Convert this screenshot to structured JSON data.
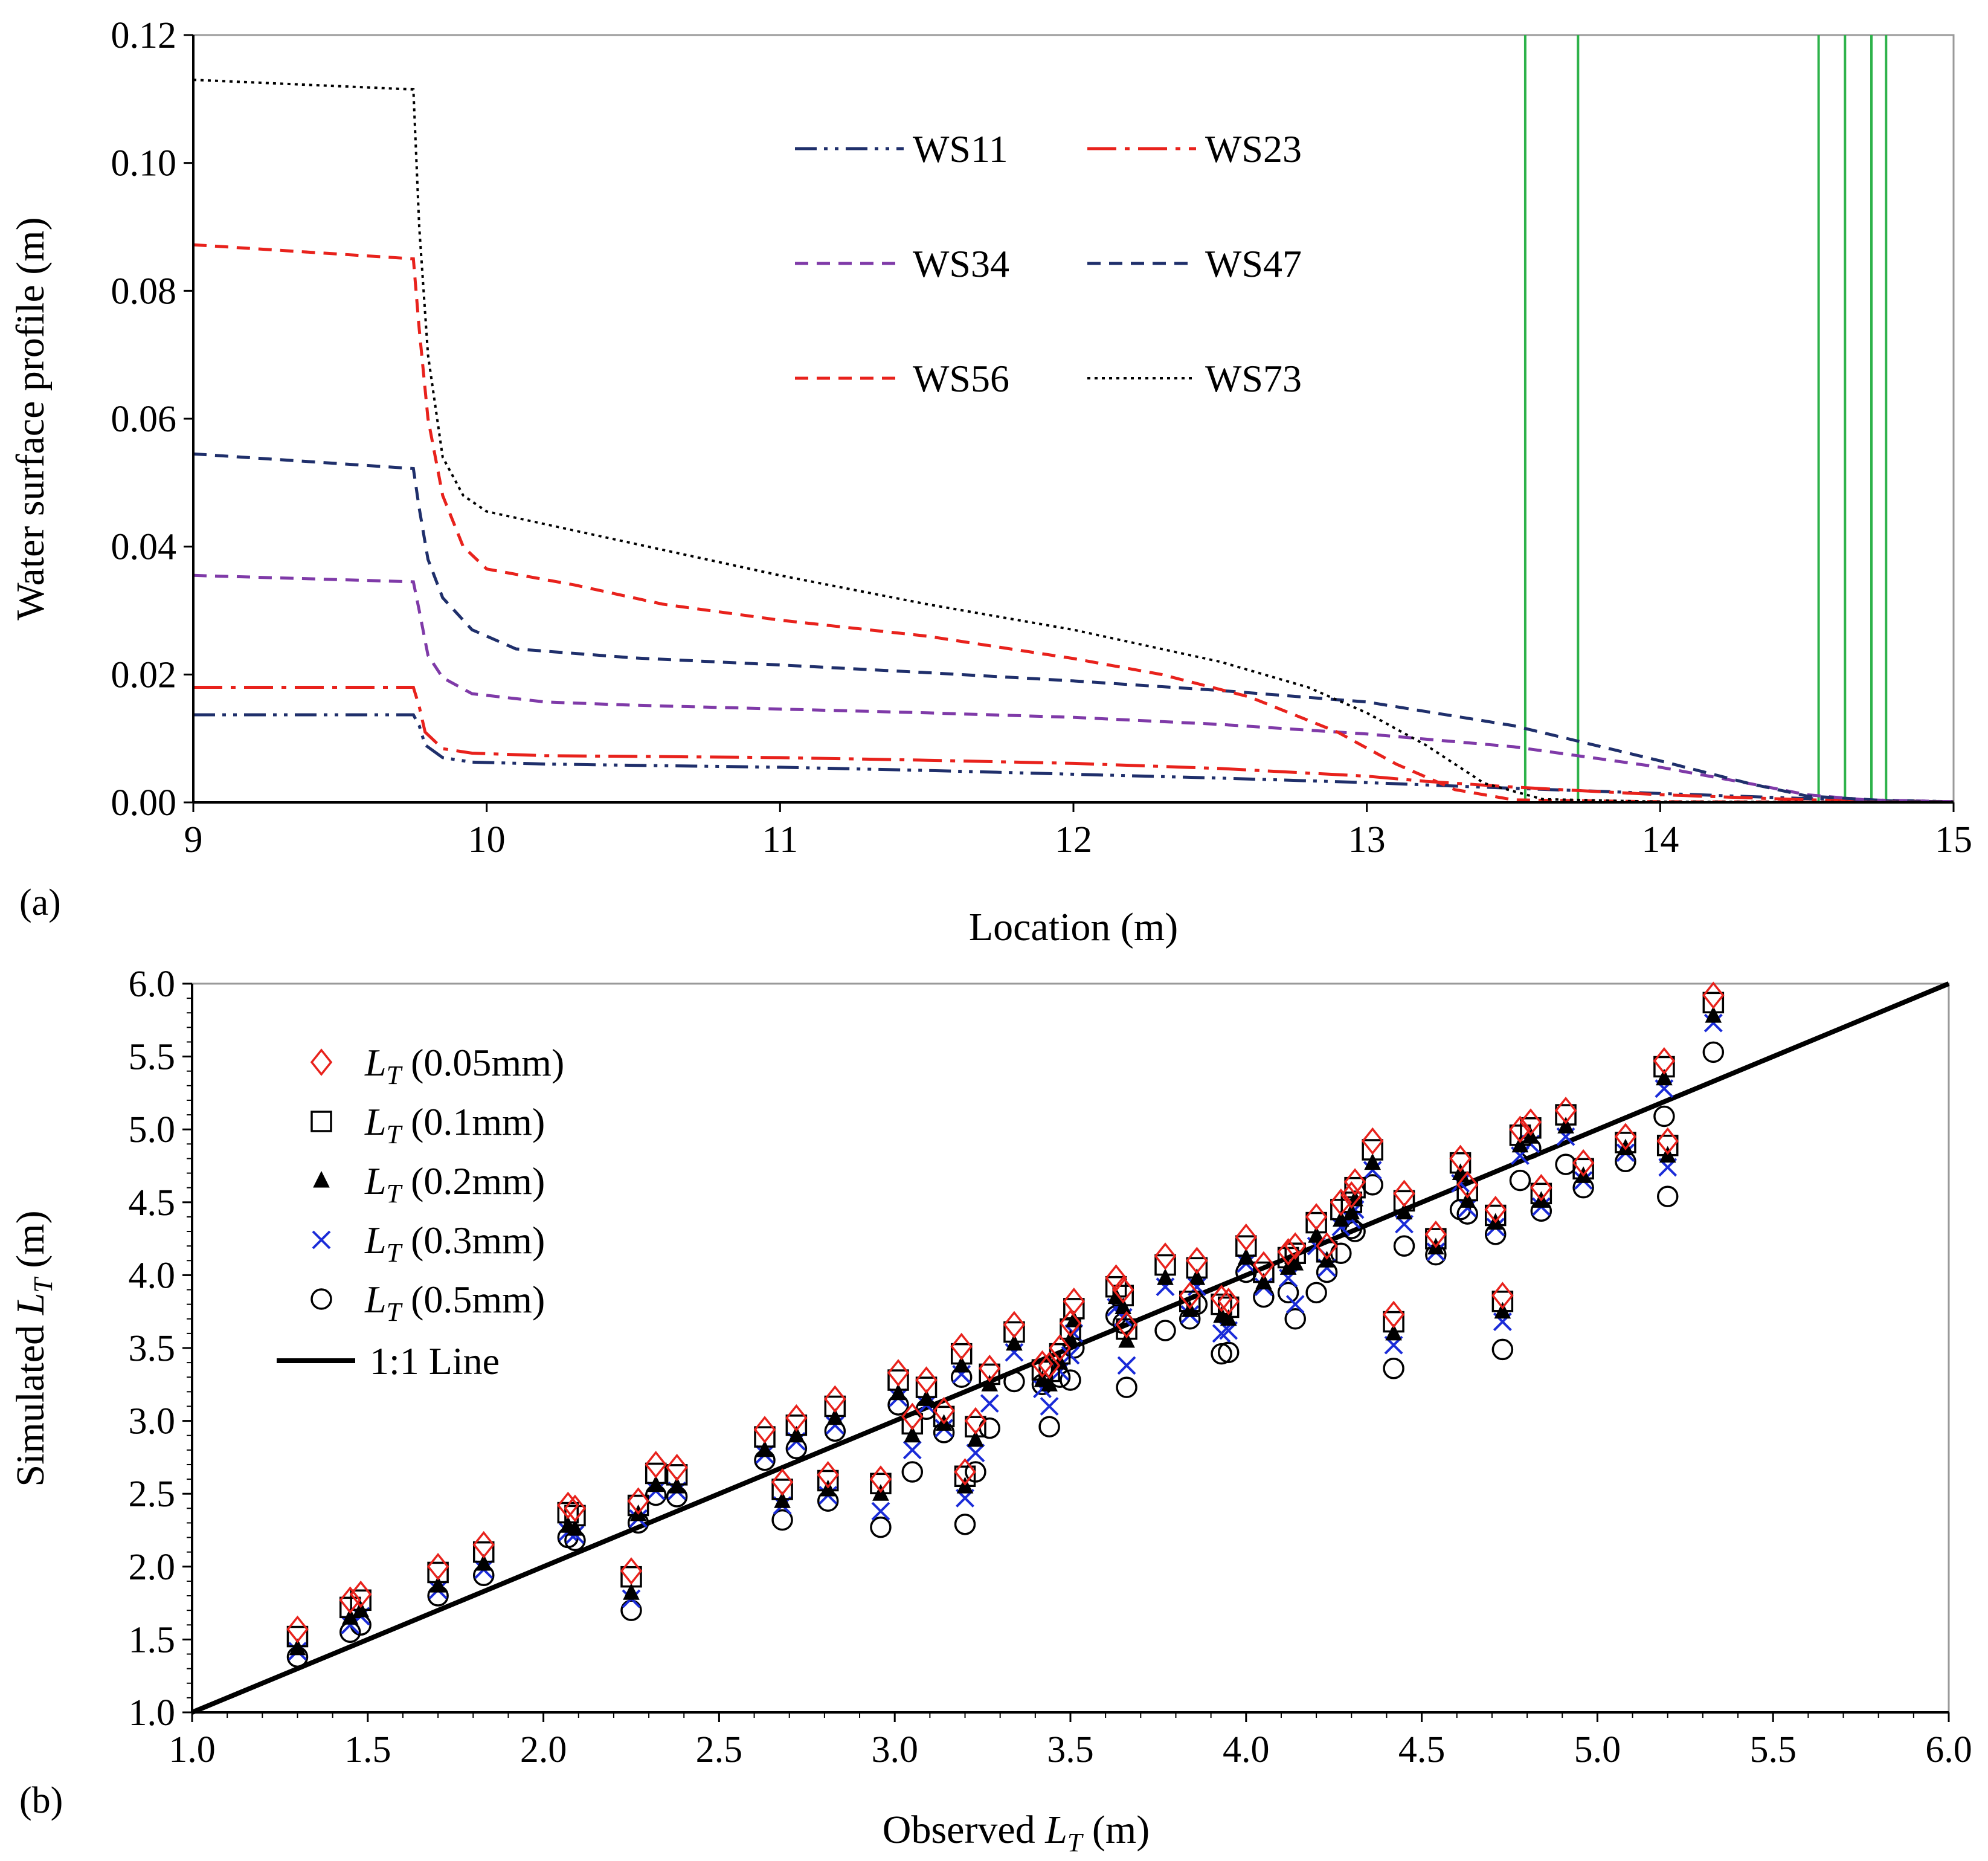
{
  "chart_data": [
    {
      "type": "line",
      "panel_label": "(a)",
      "xlabel": "Location (m)",
      "ylabel": "Water surface profile (m)",
      "xlim": [
        9,
        15
      ],
      "ylim": [
        0,
        0.12
      ],
      "xticks": [
        9,
        10,
        11,
        12,
        13,
        14,
        15
      ],
      "yticks": [
        "0.00",
        "0.02",
        "0.04",
        "0.06",
        "0.08",
        "0.10",
        "0.12"
      ],
      "grid": false,
      "legend_position": "top-center",
      "vertical_lines": {
        "color": "#2db24a",
        "x": [
          13.54,
          13.72,
          14.54,
          14.63,
          14.72,
          14.77
        ]
      },
      "series": [
        {
          "name": "WS11",
          "color": "#1f2f6b",
          "dash": "dashdotdot",
          "points": [
            [
              9.0,
              0.0137
            ],
            [
              9.75,
              0.0137
            ],
            [
              9.77,
              0.012
            ],
            [
              9.79,
              0.009
            ],
            [
              9.85,
              0.007
            ],
            [
              9.95,
              0.0063
            ],
            [
              10.2,
              0.006
            ],
            [
              10.5,
              0.0058
            ],
            [
              11.0,
              0.0055
            ],
            [
              11.5,
              0.005
            ],
            [
              12.0,
              0.0044
            ],
            [
              12.5,
              0.0038
            ],
            [
              13.0,
              0.0031
            ],
            [
              13.5,
              0.0022
            ],
            [
              14.0,
              0.0014
            ],
            [
              14.5,
              0.0006
            ],
            [
              15.0,
              0.0001
            ]
          ]
        },
        {
          "name": "WS23",
          "color": "#e8221c",
          "dash": "longdashdot",
          "points": [
            [
              9.0,
              0.018
            ],
            [
              9.75,
              0.018
            ],
            [
              9.77,
              0.015
            ],
            [
              9.79,
              0.011
            ],
            [
              9.85,
              0.0084
            ],
            [
              9.95,
              0.0077
            ],
            [
              10.2,
              0.0073
            ],
            [
              10.5,
              0.0072
            ],
            [
              11.0,
              0.007
            ],
            [
              11.5,
              0.0066
            ],
            [
              12.0,
              0.0061
            ],
            [
              12.5,
              0.0053
            ],
            [
              13.0,
              0.0041
            ],
            [
              13.2,
              0.0033
            ],
            [
              13.5,
              0.0024
            ],
            [
              13.7,
              0.0019
            ],
            [
              14.0,
              0.0012
            ],
            [
              14.5,
              0.0004
            ],
            [
              15.0,
              0.0001
            ]
          ]
        },
        {
          "name": "WS34",
          "color": "#7f3aa8",
          "dash": "dash",
          "points": [
            [
              9.0,
              0.0355
            ],
            [
              9.75,
              0.0345
            ],
            [
              9.77,
              0.03
            ],
            [
              9.8,
              0.023
            ],
            [
              9.85,
              0.0195
            ],
            [
              9.95,
              0.017
            ],
            [
              10.2,
              0.0157
            ],
            [
              10.5,
              0.0152
            ],
            [
              11.0,
              0.0146
            ],
            [
              11.5,
              0.014
            ],
            [
              12.0,
              0.0133
            ],
            [
              12.5,
              0.0122
            ],
            [
              13.0,
              0.0107
            ],
            [
              13.5,
              0.0087
            ],
            [
              14.0,
              0.0055
            ],
            [
              14.3,
              0.003
            ],
            [
              14.5,
              0.0012
            ],
            [
              14.7,
              0.0004
            ],
            [
              15.0,
              0.0001
            ]
          ]
        },
        {
          "name": "WS47",
          "color": "#1f2f6b",
          "dash": "dash",
          "points": [
            [
              9.0,
              0.0545
            ],
            [
              9.75,
              0.0522
            ],
            [
              9.77,
              0.046
            ],
            [
              9.8,
              0.038
            ],
            [
              9.85,
              0.032
            ],
            [
              9.95,
              0.027
            ],
            [
              10.1,
              0.024
            ],
            [
              10.5,
              0.0226
            ],
            [
              11.0,
              0.0215
            ],
            [
              11.5,
              0.0203
            ],
            [
              12.0,
              0.019
            ],
            [
              12.5,
              0.0175
            ],
            [
              13.0,
              0.0157
            ],
            [
              13.5,
              0.012
            ],
            [
              14.0,
              0.0065
            ],
            [
              14.3,
              0.003
            ],
            [
              14.5,
              0.001
            ],
            [
              14.8,
              0.0002
            ],
            [
              15.0,
              0.0001
            ]
          ]
        },
        {
          "name": "WS56",
          "color": "#e8221c",
          "dash": "dash",
          "points": [
            [
              9.0,
              0.0872
            ],
            [
              9.75,
              0.085
            ],
            [
              9.77,
              0.074
            ],
            [
              9.8,
              0.06
            ],
            [
              9.85,
              0.048
            ],
            [
              9.92,
              0.04
            ],
            [
              10.0,
              0.0365
            ],
            [
              10.3,
              0.034
            ],
            [
              10.6,
              0.031
            ],
            [
              11.0,
              0.0285
            ],
            [
              11.5,
              0.026
            ],
            [
              12.0,
              0.0225
            ],
            [
              12.3,
              0.02
            ],
            [
              12.6,
              0.0165
            ],
            [
              12.9,
              0.011
            ],
            [
              13.1,
              0.006
            ],
            [
              13.3,
              0.002
            ],
            [
              13.5,
              0.0004
            ],
            [
              14.0,
              0.0001
            ],
            [
              15.0,
              0.0
            ]
          ]
        },
        {
          "name": "WS73",
          "color": "#000000",
          "dash": "dot",
          "points": [
            [
              9.0,
              0.113
            ],
            [
              9.75,
              0.1115
            ],
            [
              9.77,
              0.09
            ],
            [
              9.8,
              0.07
            ],
            [
              9.85,
              0.054
            ],
            [
              9.92,
              0.048
            ],
            [
              10.0,
              0.0455
            ],
            [
              10.2,
              0.0435
            ],
            [
              10.5,
              0.0405
            ],
            [
              11.0,
              0.0355
            ],
            [
              11.5,
              0.031
            ],
            [
              12.0,
              0.027
            ],
            [
              12.5,
              0.022
            ],
            [
              12.8,
              0.018
            ],
            [
              13.0,
              0.014
            ],
            [
              13.2,
              0.009
            ],
            [
              13.4,
              0.003
            ],
            [
              13.6,
              0.0005
            ],
            [
              14.0,
              0.0001
            ],
            [
              15.0,
              0.0
            ]
          ]
        }
      ]
    },
    {
      "type": "scatter",
      "panel_label": "(b)",
      "xlabel_prefix": "Observed ",
      "xlabel_var": "L",
      "xlabel_sub": "T",
      "xlabel_unit": " (m)",
      "ylabel_prefix": "Simulated ",
      "ylabel_var": "L",
      "ylabel_sub": "T",
      "ylabel_unit": " (m)",
      "xlim": [
        1.0,
        6.0
      ],
      "ylim": [
        1.0,
        6.0
      ],
      "xticks": [
        "1.0",
        "1.5",
        "2.0",
        "2.5",
        "3.0",
        "3.5",
        "4.0",
        "4.5",
        "5.0",
        "5.5",
        "6.0"
      ],
      "yticks": [
        "1.0",
        "1.5",
        "2.0",
        "2.5",
        "3.0",
        "3.5",
        "4.0",
        "4.5",
        "5.0",
        "5.5",
        "6.0"
      ],
      "grid": false,
      "legend_position": "top-left",
      "reference_line": {
        "name": "1:1 Line",
        "color": "#000000",
        "points": [
          [
            1.0,
            1.0
          ],
          [
            6.0,
            6.0
          ]
        ]
      },
      "observed_x": [
        1.3,
        1.45,
        1.48,
        1.7,
        1.83,
        2.07,
        2.09,
        2.25,
        2.27,
        2.32,
        2.38,
        2.63,
        2.68,
        2.72,
        2.81,
        2.83,
        2.96,
        3.01,
        3.05,
        3.09,
        3.14,
        3.19,
        3.2,
        3.23,
        3.27,
        3.34,
        3.42,
        3.44,
        3.47,
        3.5,
        3.51,
        3.63,
        3.65,
        3.66,
        3.77,
        3.84,
        3.86,
        3.93,
        3.95,
        4.0,
        4.05,
        4.12,
        4.14,
        4.2,
        4.23,
        4.27,
        4.3,
        4.31,
        4.36,
        4.42,
        4.45,
        4.54,
        4.61,
        4.63,
        4.71,
        4.73,
        4.78,
        4.81,
        4.84,
        4.91,
        4.96,
        5.08,
        5.19,
        5.2,
        5.33
      ],
      "series": [
        {
          "name": "(0.05mm)",
          "color": "#e8221c",
          "marker": "diamond",
          "y": [
            1.57,
            1.77,
            1.81,
            2.0,
            2.15,
            2.42,
            2.4,
            1.97,
            2.45,
            2.7,
            2.68,
            2.94,
            2.58,
            3.02,
            2.63,
            3.15,
            2.6,
            3.33,
            3.03,
            3.28,
            3.07,
            3.51,
            2.65,
            3.0,
            3.36,
            3.66,
            3.39,
            3.38,
            3.5,
            3.67,
            3.82,
            3.98,
            3.9,
            3.66,
            4.13,
            3.86,
            4.1,
            3.84,
            3.82,
            4.26,
            4.07,
            4.16,
            4.2,
            4.4,
            4.2,
            4.5,
            4.55,
            4.64,
            4.92,
            3.73,
            4.56,
            4.28,
            4.8,
            4.62,
            4.45,
            3.86,
            5.0,
            5.05,
            4.6,
            5.13,
            4.77,
            4.95,
            5.47,
            4.92,
            5.92
          ]
        },
        {
          "name": "(0.1mm)",
          "color": "#000000",
          "marker": "square",
          "y": [
            1.52,
            1.72,
            1.77,
            1.96,
            2.1,
            2.37,
            2.35,
            1.93,
            2.42,
            2.64,
            2.63,
            2.89,
            2.53,
            2.97,
            2.59,
            3.1,
            2.57,
            3.28,
            2.98,
            3.23,
            3.03,
            3.46,
            2.62,
            2.96,
            3.32,
            3.61,
            3.35,
            3.34,
            3.46,
            3.63,
            3.77,
            3.92,
            3.86,
            3.63,
            4.07,
            3.82,
            4.05,
            3.8,
            3.78,
            4.2,
            4.02,
            4.12,
            4.15,
            4.36,
            4.16,
            4.45,
            4.5,
            4.6,
            4.86,
            3.68,
            4.51,
            4.25,
            4.77,
            4.58,
            4.41,
            3.82,
            4.96,
            5.01,
            4.56,
            5.1,
            4.73,
            4.91,
            5.43,
            4.89,
            5.87
          ]
        },
        {
          "name": "(0.2mm)",
          "color": "#000000",
          "marker": "triangle",
          "y": [
            1.44,
            1.65,
            1.7,
            1.87,
            2.02,
            2.28,
            2.26,
            1.82,
            2.36,
            2.56,
            2.55,
            2.8,
            2.45,
            2.9,
            2.53,
            3.02,
            2.5,
            3.19,
            2.9,
            3.15,
            2.98,
            3.38,
            2.55,
            2.87,
            3.25,
            3.53,
            3.28,
            3.25,
            3.4,
            3.56,
            3.69,
            3.85,
            3.78,
            3.55,
            3.98,
            3.76,
            3.98,
            3.72,
            3.7,
            4.12,
            3.95,
            4.05,
            4.08,
            4.27,
            4.1,
            4.38,
            4.43,
            4.52,
            4.77,
            3.6,
            4.43,
            4.19,
            4.7,
            4.51,
            4.36,
            3.75,
            4.89,
            4.95,
            4.51,
            5.02,
            4.68,
            4.87,
            5.35,
            4.82,
            5.78
          ]
        },
        {
          "name": "(0.3mm)",
          "color": "#1a2bd8",
          "marker": "x",
          "y": [
            1.42,
            1.6,
            1.66,
            1.84,
            1.98,
            2.24,
            2.22,
            1.78,
            2.33,
            2.52,
            2.52,
            2.77,
            2.42,
            2.86,
            2.49,
            2.97,
            2.38,
            3.16,
            2.8,
            3.11,
            2.95,
            3.32,
            2.47,
            2.78,
            3.12,
            3.47,
            3.22,
            3.1,
            3.34,
            3.45,
            3.6,
            3.78,
            3.71,
            3.38,
            3.92,
            3.73,
            3.92,
            3.6,
            3.62,
            4.08,
            3.92,
            3.98,
            3.8,
            4.2,
            4.05,
            4.33,
            4.38,
            4.45,
            4.72,
            3.52,
            4.35,
            4.16,
            4.63,
            4.46,
            4.33,
            3.68,
            4.82,
            4.9,
            4.47,
            4.95,
            4.65,
            4.84,
            5.28,
            4.74,
            5.73
          ]
        },
        {
          "name": "(0.5mm)",
          "color": "#000000",
          "marker": "circle",
          "y": [
            1.38,
            1.55,
            1.6,
            1.8,
            1.94,
            2.2,
            2.18,
            1.7,
            2.3,
            2.49,
            2.48,
            2.73,
            2.32,
            2.81,
            2.45,
            2.93,
            2.27,
            3.11,
            2.65,
            3.08,
            2.92,
            3.3,
            2.29,
            2.65,
            2.95,
            3.27,
            3.25,
            2.96,
            3.3,
            3.28,
            3.5,
            3.72,
            3.67,
            3.23,
            3.62,
            3.7,
            3.8,
            3.46,
            3.47,
            4.02,
            3.85,
            3.88,
            3.7,
            3.88,
            4.02,
            4.15,
            4.32,
            4.3,
            4.62,
            3.36,
            4.2,
            4.14,
            4.45,
            4.42,
            4.28,
            3.49,
            4.65,
            4.87,
            4.44,
            4.76,
            4.6,
            4.78,
            5.09,
            4.54,
            5.53
          ]
        }
      ]
    }
  ]
}
